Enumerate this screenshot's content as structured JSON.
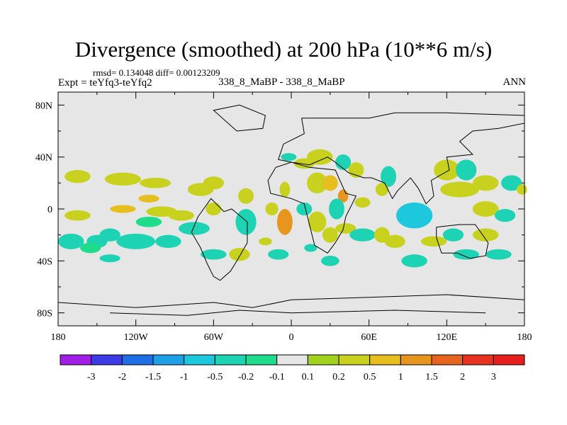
{
  "chart_data": {
    "type": "heatmap",
    "title": "Divergence (smoothed) at 200 hPa (10**6 m/s)",
    "stats": "rmsd= 0.134048  diff= 0.00123209",
    "experiment": "Expt = teYfq3-teYfq2",
    "center_label": "338_8_MaBP - 338_8_MaBP",
    "season": "ANN",
    "xlabel": "",
    "ylabel": "",
    "xlim": [
      -180,
      180
    ],
    "ylim": [
      -90,
      90
    ],
    "x_ticks": [
      {
        "value": -180,
        "label": "180"
      },
      {
        "value": -120,
        "label": "120W"
      },
      {
        "value": -60,
        "label": "60W"
      },
      {
        "value": 0,
        "label": "0"
      },
      {
        "value": 60,
        "label": "60E"
      },
      {
        "value": 120,
        "label": "120E"
      },
      {
        "value": 180,
        "label": "180"
      }
    ],
    "y_ticks": [
      {
        "value": 80,
        "label": "80N"
      },
      {
        "value": 40,
        "label": "40N"
      },
      {
        "value": 0,
        "label": "0"
      },
      {
        "value": -40,
        "label": "40S"
      },
      {
        "value": -80,
        "label": "80S"
      }
    ],
    "colorbar": {
      "labels": [
        "-3",
        "-2",
        "-1.5",
        "-1",
        "-0.5",
        "-0.2",
        "-0.1",
        "0.1",
        "0.2",
        "0.5",
        "1",
        "1.5",
        "2",
        "3"
      ],
      "colors": [
        "#a01ee6",
        "#3c3ce6",
        "#1e6ee6",
        "#1ea0e6",
        "#1ec8dc",
        "#1ed2b4",
        "#1edc8c",
        "#e6e6e6",
        "#a0d21e",
        "#c8d21e",
        "#e6be1e",
        "#e6961e",
        "#e6641e",
        "#e6321e",
        "#e61e1e"
      ]
    },
    "background_color": "#e6e6e6",
    "coastlines": [
      [
        [
          -72,
          -6
        ],
        [
          -77,
          -18
        ],
        [
          -70,
          -30
        ],
        [
          -65,
          -42
        ],
        [
          -60,
          -52
        ],
        [
          -55,
          -55
        ],
        [
          -47,
          -48
        ],
        [
          -42,
          -40
        ],
        [
          -34,
          -26
        ],
        [
          -34,
          -10
        ],
        [
          -46,
          0
        ],
        [
          -52,
          -2
        ],
        [
          -62,
          8
        ],
        [
          -72,
          -6
        ]
      ],
      [
        [
          -18,
          22
        ],
        [
          -16,
          12
        ],
        [
          0,
          8
        ],
        [
          10,
          4
        ],
        [
          12,
          -4
        ],
        [
          14,
          -12
        ],
        [
          18,
          -28
        ],
        [
          28,
          -34
        ],
        [
          34,
          -26
        ],
        [
          40,
          -16
        ],
        [
          42,
          -6
        ],
        [
          50,
          10
        ],
        [
          42,
          12
        ],
        [
          34,
          30
        ],
        [
          14,
          32
        ],
        [
          0,
          36
        ],
        [
          -12,
          32
        ],
        [
          -18,
          22
        ]
      ],
      [
        [
          -42,
          60
        ],
        [
          -22,
          62
        ],
        [
          -20,
          72
        ],
        [
          -40,
          80
        ],
        [
          -60,
          76
        ],
        [
          -42,
          60
        ]
      ],
      [
        [
          112,
          -14
        ],
        [
          130,
          -12
        ],
        [
          142,
          -12
        ],
        [
          152,
          -26
        ],
        [
          150,
          -36
        ],
        [
          138,
          -38
        ],
        [
          128,
          -34
        ],
        [
          116,
          -34
        ],
        [
          112,
          -22
        ],
        [
          112,
          -14
        ]
      ],
      [
        [
          8,
          70
        ],
        [
          10,
          58
        ],
        [
          -6,
          50
        ],
        [
          -10,
          38
        ],
        [
          0,
          36
        ],
        [
          14,
          34
        ],
        [
          28,
          40
        ],
        [
          34,
          36
        ],
        [
          44,
          28
        ],
        [
          56,
          24
        ],
        [
          62,
          24
        ],
        [
          72,
          20
        ],
        [
          78,
          8
        ],
        [
          82,
          14
        ],
        [
          92,
          24
        ],
        [
          98,
          16
        ],
        [
          104,
          4
        ],
        [
          110,
          10
        ],
        [
          108,
          22
        ],
        [
          122,
          30
        ],
        [
          120,
          40
        ],
        [
          140,
          42
        ],
        [
          130,
          52
        ],
        [
          140,
          60
        ],
        [
          160,
          62
        ],
        [
          180,
          66
        ],
        [
          180,
          72
        ],
        [
          120,
          74
        ],
        [
          80,
          74
        ],
        [
          60,
          70
        ],
        [
          30,
          70
        ],
        [
          8,
          70
        ]
      ],
      [
        [
          -180,
          -72
        ],
        [
          -120,
          -76
        ],
        [
          -60,
          -72
        ],
        [
          -30,
          -76
        ],
        [
          0,
          -70
        ],
        [
          60,
          -68
        ],
        [
          120,
          -66
        ],
        [
          180,
          -70
        ]
      ],
      [
        [
          -140,
          -80
        ],
        [
          -80,
          -82
        ],
        [
          -40,
          -78
        ],
        [
          0,
          -80
        ],
        [
          80,
          -78
        ],
        [
          150,
          -80
        ]
      ]
    ],
    "features": [
      {
        "lon": -165,
        "lat": 25,
        "rlon": 10,
        "rlat": 5,
        "value": 0.3
      },
      {
        "lon": -165,
        "lat": -5,
        "rlon": 10,
        "rlat": 4,
        "value": 0.4
      },
      {
        "lon": -170,
        "lat": -25,
        "rlon": 10,
        "rlat": 6,
        "value": -0.25
      },
      {
        "lon": -150,
        "lat": -25,
        "rlon": 8,
        "rlat": 5,
        "value": -0.3
      },
      {
        "lon": -155,
        "lat": -30,
        "rlon": 8,
        "rlat": 4,
        "value": -0.2
      },
      {
        "lon": -140,
        "lat": -20,
        "rlon": 8,
        "rlat": 5,
        "value": -0.3
      },
      {
        "lon": -130,
        "lat": 23,
        "rlon": 14,
        "rlat": 5,
        "value": 0.35
      },
      {
        "lon": -105,
        "lat": 20,
        "rlon": 12,
        "rlat": 4,
        "value": 0.25
      },
      {
        "lon": -110,
        "lat": 8,
        "rlon": 8,
        "rlat": 3,
        "value": 0.5
      },
      {
        "lon": -130,
        "lat": 0,
        "rlon": 10,
        "rlat": 3,
        "value": 0.5
      },
      {
        "lon": -100,
        "lat": -2,
        "rlon": 12,
        "rlat": 4,
        "value": 0.4
      },
      {
        "lon": -85,
        "lat": -5,
        "rlon": 10,
        "rlat": 4,
        "value": 0.3
      },
      {
        "lon": -110,
        "lat": -10,
        "rlon": 10,
        "rlat": 4,
        "value": -0.2
      },
      {
        "lon": -120,
        "lat": -25,
        "rlon": 15,
        "rlat": 6,
        "value": -0.35
      },
      {
        "lon": -95,
        "lat": -25,
        "rlon": 10,
        "rlat": 5,
        "value": -0.3
      },
      {
        "lon": -70,
        "lat": 15,
        "rlon": 10,
        "rlat": 5,
        "value": 0.3
      },
      {
        "lon": -60,
        "lat": 20,
        "rlon": 8,
        "rlat": 5,
        "value": 0.25
      },
      {
        "lon": -75,
        "lat": -15,
        "rlon": 12,
        "rlat": 5,
        "value": -0.3
      },
      {
        "lon": -60,
        "lat": -35,
        "rlon": 10,
        "rlat": 4,
        "value": -0.3
      },
      {
        "lon": -40,
        "lat": -35,
        "rlon": 8,
        "rlat": 5,
        "value": 0.3
      },
      {
        "lon": -35,
        "lat": -10,
        "rlon": 8,
        "rlat": 10,
        "value": -0.4
      },
      {
        "lon": -35,
        "lat": 10,
        "rlon": 6,
        "rlat": 6,
        "value": 0.4
      },
      {
        "lon": -15,
        "lat": 0,
        "rlon": 5,
        "rlat": 5,
        "value": 0.3
      },
      {
        "lon": -5,
        "lat": -10,
        "rlon": 6,
        "rlat": 10,
        "value": 1.0
      },
      {
        "lon": -10,
        "lat": -35,
        "rlon": 8,
        "rlat": 4,
        "value": -0.3
      },
      {
        "lon": -20,
        "lat": -25,
        "rlon": 5,
        "rlat": 3,
        "value": 0.3
      },
      {
        "lon": -5,
        "lat": 15,
        "rlon": 4,
        "rlat": 6,
        "value": 0.3
      },
      {
        "lon": -2,
        "lat": 40,
        "rlon": 6,
        "rlat": 3,
        "value": -0.3
      },
      {
        "lon": 10,
        "lat": 35,
        "rlon": 8,
        "rlat": 4,
        "value": 0.25
      },
      {
        "lon": 20,
        "lat": 20,
        "rlon": 8,
        "rlat": 8,
        "value": 0.4
      },
      {
        "lon": 30,
        "lat": 20,
        "rlon": 6,
        "rlat": 6,
        "value": 0.6
      },
      {
        "lon": 40,
        "lat": 10,
        "rlon": 4,
        "rlat": 5,
        "value": 1.2
      },
      {
        "lon": 10,
        "lat": 0,
        "rlon": 6,
        "rlat": 5,
        "value": -0.3
      },
      {
        "lon": 20,
        "lat": -10,
        "rlon": 7,
        "rlat": 8,
        "value": 0.3
      },
      {
        "lon": 30,
        "lat": -20,
        "rlon": 6,
        "rlat": 6,
        "value": 0.25
      },
      {
        "lon": 42,
        "lat": -15,
        "rlon": 8,
        "rlat": 4,
        "value": 0.35
      },
      {
        "lon": 15,
        "lat": -30,
        "rlon": 5,
        "rlat": 3,
        "value": -0.3
      },
      {
        "lon": 22,
        "lat": 40,
        "rlon": 10,
        "rlat": 6,
        "value": 0.25
      },
      {
        "lon": 40,
        "lat": 36,
        "rlon": 6,
        "rlat": 6,
        "value": -0.25
      },
      {
        "lon": 50,
        "lat": 30,
        "rlon": 6,
        "rlat": 6,
        "value": 0.3
      },
      {
        "lon": 35,
        "lat": 0,
        "rlon": 6,
        "rlat": 8,
        "value": -0.4
      },
      {
        "lon": 55,
        "lat": 5,
        "rlon": 6,
        "rlat": 4,
        "value": 0.25
      },
      {
        "lon": 30,
        "lat": -40,
        "rlon": 7,
        "rlat": 4,
        "value": -0.3
      },
      {
        "lon": 55,
        "lat": -20,
        "rlon": 10,
        "rlat": 5,
        "value": -0.35
      },
      {
        "lon": 70,
        "lat": -20,
        "rlon": 6,
        "rlat": 6,
        "value": 0.3
      },
      {
        "lon": 75,
        "lat": 25,
        "rlon": 6,
        "rlat": 8,
        "value": -0.3
      },
      {
        "lon": 70,
        "lat": 15,
        "rlon": 5,
        "rlat": 5,
        "value": 0.25
      },
      {
        "lon": 95,
        "lat": -5,
        "rlon": 14,
        "rlat": 10,
        "value": -0.6
      },
      {
        "lon": 80,
        "lat": -25,
        "rlon": 8,
        "rlat": 5,
        "value": 0.3
      },
      {
        "lon": 95,
        "lat": -40,
        "rlon": 10,
        "rlat": 5,
        "value": -0.25
      },
      {
        "lon": 110,
        "lat": -25,
        "rlon": 10,
        "rlat": 4,
        "value": 0.3
      },
      {
        "lon": 125,
        "lat": -20,
        "rlon": 8,
        "rlat": 5,
        "value": -0.3
      },
      {
        "lon": 135,
        "lat": -35,
        "rlon": 10,
        "rlat": 4,
        "value": -0.3
      },
      {
        "lon": 150,
        "lat": -20,
        "rlon": 10,
        "rlat": 5,
        "value": 0.3
      },
      {
        "lon": 160,
        "lat": -35,
        "rlon": 10,
        "rlat": 4,
        "value": -0.3
      },
      {
        "lon": 130,
        "lat": 15,
        "rlon": 15,
        "rlat": 6,
        "value": 0.3
      },
      {
        "lon": 120,
        "lat": 30,
        "rlon": 10,
        "rlat": 8,
        "value": 0.35
      },
      {
        "lon": 135,
        "lat": 30,
        "rlon": 8,
        "rlat": 8,
        "value": -0.25
      },
      {
        "lon": 150,
        "lat": 20,
        "rlon": 10,
        "rlat": 6,
        "value": 0.4
      },
      {
        "lon": 150,
        "lat": 0,
        "rlon": 10,
        "rlat": 6,
        "value": 0.4
      },
      {
        "lon": 165,
        "lat": -5,
        "rlon": 8,
        "rlat": 5,
        "value": -0.3
      },
      {
        "lon": 170,
        "lat": 20,
        "rlon": 8,
        "rlat": 6,
        "value": -0.25
      },
      {
        "lon": 178,
        "lat": 15,
        "rlon": 4,
        "rlat": 4,
        "value": 0.3
      },
      {
        "lon": -140,
        "lat": -38,
        "rlon": 8,
        "rlat": 3,
        "value": -0.25
      },
      {
        "lon": -60,
        "lat": 0,
        "rlon": 6,
        "rlat": 5,
        "value": 0.3
      }
    ]
  }
}
